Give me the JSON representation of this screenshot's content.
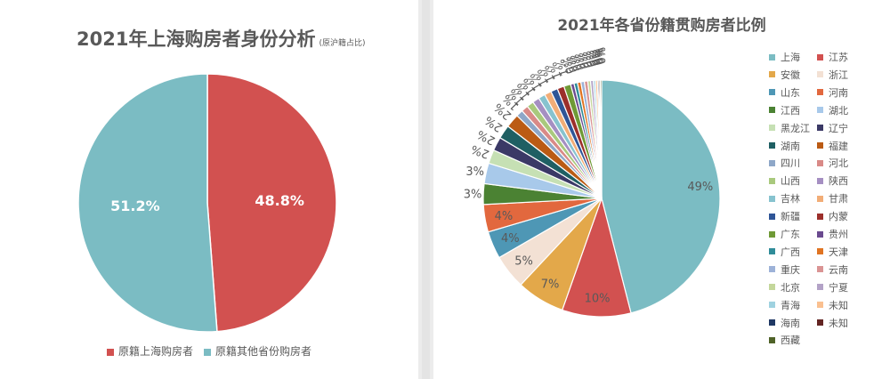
{
  "left": {
    "title": "2021年上海购房者身份分析",
    "subtitle": "(原沪籍占比)"
  },
  "right": {
    "title": "2021年各省份籍贯购房者比例"
  },
  "chart_data": [
    {
      "type": "pie",
      "title": "2021年上海购房者身份分析",
      "subtitle": "(原沪籍占比)",
      "slices": [
        {
          "name": "原籍上海购房者",
          "value": 48.8,
          "label": "48.8%",
          "color": "#d25150"
        },
        {
          "name": "原籍其他省份购房者",
          "value": 51.2,
          "label": "51.2%",
          "color": "#7bbcc3"
        }
      ],
      "legend": "bottom"
    },
    {
      "type": "pie",
      "title": "2021年各省份籍贯购房者比例",
      "legend": "right",
      "slices": [
        {
          "name": "上海",
          "value": 49,
          "label": "49%",
          "color": "#7bbcc3"
        },
        {
          "name": "江苏",
          "value": 10,
          "label": "10%",
          "color": "#d25150"
        },
        {
          "name": "安徽",
          "value": 7,
          "label": "7%",
          "color": "#e3a84a"
        },
        {
          "name": "浙江",
          "value": 5,
          "label": "5%",
          "color": "#f3e1d4"
        },
        {
          "name": "山东",
          "value": 4,
          "label": "4%",
          "color": "#4e97b5"
        },
        {
          "name": "河南",
          "value": 4,
          "label": "4%",
          "color": "#e2683e"
        },
        {
          "name": "江西",
          "value": 3,
          "label": "3%",
          "color": "#4b8233"
        },
        {
          "name": "湖北",
          "value": 3,
          "label": "3%",
          "color": "#a8c9ea"
        },
        {
          "name": "黑龙江",
          "value": 2,
          "label": "2%",
          "color": "#c6e0b4"
        },
        {
          "name": "辽宁",
          "value": 2,
          "label": "2%",
          "color": "#3b3966"
        },
        {
          "name": "湖南",
          "value": 2,
          "label": "2%",
          "color": "#1f5f63"
        },
        {
          "name": "福建",
          "value": 2,
          "label": "2%",
          "color": "#bb5b14"
        },
        {
          "name": "四川",
          "value": 1,
          "label": "1%",
          "color": "#8ea7c8"
        },
        {
          "name": "河北",
          "value": 1,
          "label": "1%",
          "color": "#d98a87"
        },
        {
          "name": "山西",
          "value": 1,
          "label": "1%",
          "color": "#a9c97d"
        },
        {
          "name": "陕西",
          "value": 1,
          "label": "1%",
          "color": "#a58fc2"
        },
        {
          "name": "吉林",
          "value": 1,
          "label": "1%",
          "color": "#87c3cf"
        },
        {
          "name": "甘肃",
          "value": 1,
          "label": "1%",
          "color": "#f2ad77"
        },
        {
          "name": "新疆",
          "value": 1,
          "label": "1%",
          "color": "#2f5597"
        },
        {
          "name": "内蒙",
          "value": 1,
          "label": "1%",
          "color": "#9c2f2b"
        },
        {
          "name": "广东",
          "value": 1,
          "label": "1%",
          "color": "#6f9a36"
        },
        {
          "name": "贵州",
          "value": 0.5,
          "label": "0%",
          "color": "#6a4a8f"
        },
        {
          "name": "广西",
          "value": 0.5,
          "label": "0%",
          "color": "#2f8c99"
        },
        {
          "name": "天津",
          "value": 0.5,
          "label": "0%",
          "color": "#e07422"
        },
        {
          "name": "重庆",
          "value": 0.5,
          "label": "0%",
          "color": "#9db2d8"
        },
        {
          "name": "云南",
          "value": 0.5,
          "label": "0%",
          "color": "#da9494"
        },
        {
          "name": "北京",
          "value": 0.4,
          "label": "0%",
          "color": "#c4d79b"
        },
        {
          "name": "宁夏",
          "value": 0.4,
          "label": "0%",
          "color": "#b3a2c7"
        },
        {
          "name": "青海",
          "value": 0.3,
          "label": "0%",
          "color": "#9fd2e0"
        },
        {
          "name": "未知",
          "value": 0.3,
          "label": "0%",
          "color": "#fac090"
        },
        {
          "name": "海南",
          "value": 0.2,
          "label": "0%",
          "color": "#1f3864"
        },
        {
          "name": "未知",
          "value": 0.2,
          "label": "0%",
          "color": "#632523"
        },
        {
          "name": "西藏",
          "value": 0.2,
          "label": "0%",
          "color": "#4f6228"
        }
      ]
    }
  ]
}
